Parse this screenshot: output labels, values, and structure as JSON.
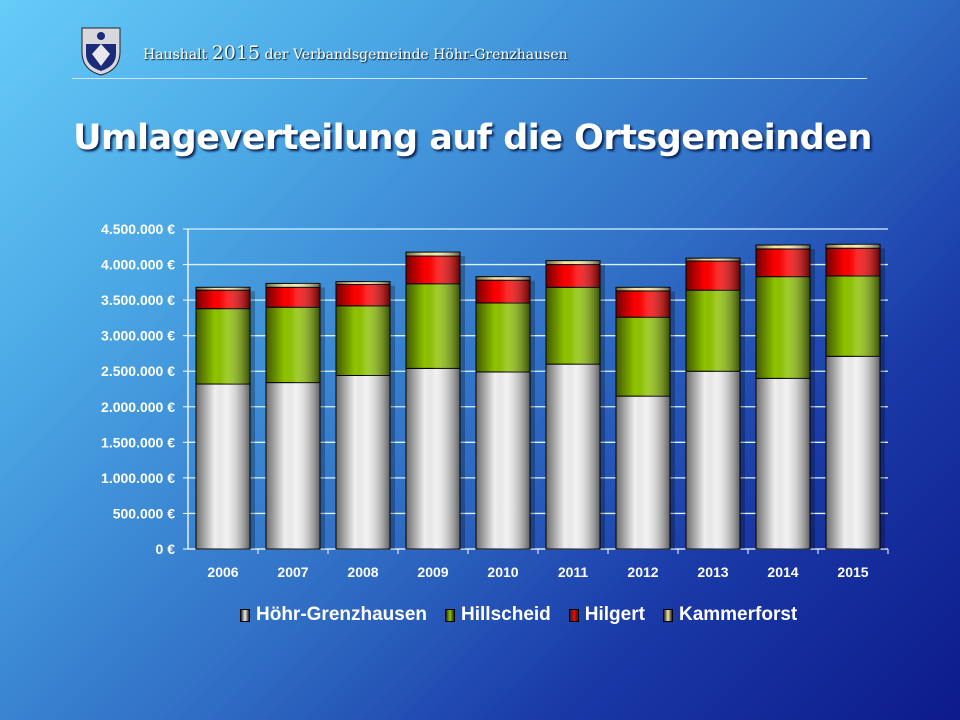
{
  "header": {
    "prefix": "Haushalt",
    "year": "2015",
    "suffix": "der Verbandsgemeinde Höhr-Grenzhausen"
  },
  "title": "Umlageverteilung auf die Ortsgemeinden",
  "chart_data": {
    "type": "bar",
    "stacked": true,
    "title": "Umlageverteilung auf die Ortsgemeinden",
    "categories": [
      "2006",
      "2007",
      "2008",
      "2009",
      "2010",
      "2011",
      "2012",
      "2013",
      "2014",
      "2015"
    ],
    "ylim": [
      0,
      4500000
    ],
    "yticks": [
      0,
      500000,
      1000000,
      1500000,
      2000000,
      2500000,
      3000000,
      3500000,
      4000000,
      4500000
    ],
    "ytick_labels": [
      "0 €",
      "500.000 €",
      "1.000.000 €",
      "1.500.000 €",
      "2.000.000 €",
      "2.500.000 €",
      "3.000.000 €",
      "3.500.000 €",
      "4.000.000 €",
      "4.500.000 €"
    ],
    "grid": true,
    "legend_placement": "bottom",
    "series": [
      {
        "name": "Höhr-Grenzhausen",
        "color": "#f0f0f0",
        "values": [
          2320000,
          2340000,
          2440000,
          2540000,
          2490000,
          2600000,
          2150000,
          2500000,
          2400000,
          2710000
        ]
      },
      {
        "name": "Hillscheid",
        "color": "#8fc400",
        "values": [
          1060000,
          1060000,
          980000,
          1190000,
          970000,
          1080000,
          1110000,
          1140000,
          1430000,
          1130000
        ]
      },
      {
        "name": "Hilgert",
        "color": "#ff0000",
        "values": [
          260000,
          280000,
          300000,
          390000,
          320000,
          320000,
          370000,
          410000,
          390000,
          390000
        ]
      },
      {
        "name": "Kammerforst",
        "color": "#f4e8a0",
        "values": [
          40000,
          55000,
          40000,
          55000,
          50000,
          55000,
          50000,
          40000,
          55000,
          55000
        ]
      }
    ]
  }
}
